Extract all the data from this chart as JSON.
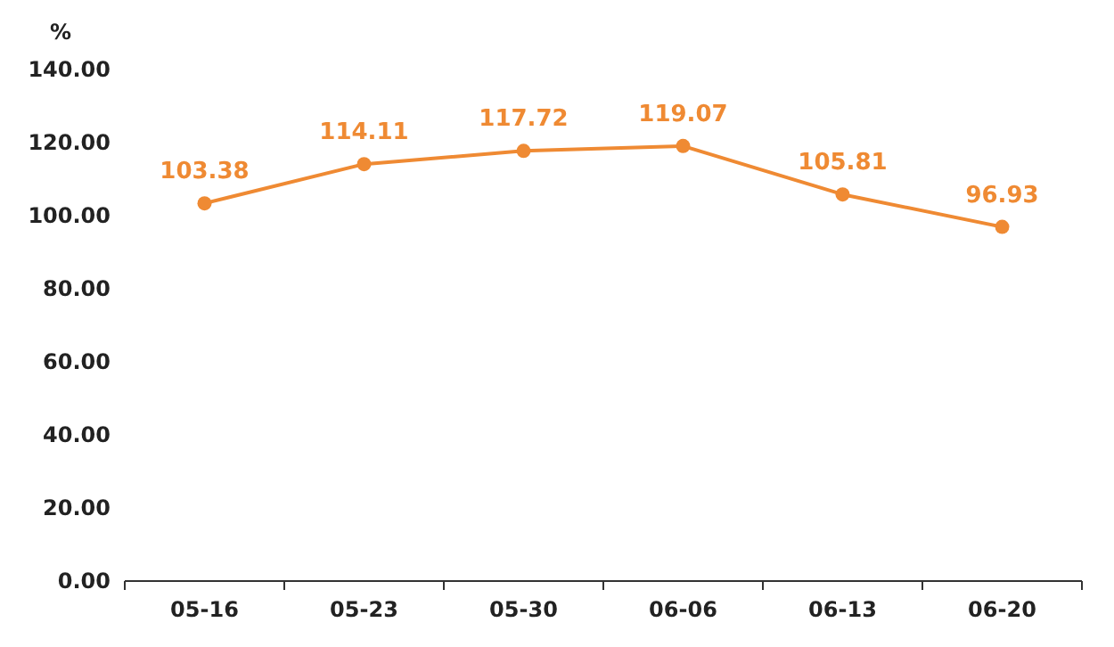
{
  "chart_data": {
    "type": "line",
    "ylabel": "%",
    "categories": [
      "05-16",
      "05-23",
      "05-30",
      "06-06",
      "06-13",
      "06-20"
    ],
    "series": [
      {
        "color": "#ef8a33",
        "values": [
          103.38,
          114.11,
          117.72,
          119.07,
          105.81,
          96.93
        ]
      }
    ],
    "ylim": [
      0,
      140
    ],
    "yticks": [
      {
        "value": 0,
        "label": "0.00"
      },
      {
        "value": 20,
        "label": "20.00"
      },
      {
        "value": 40,
        "label": "40.00"
      },
      {
        "value": 60,
        "label": "60.00"
      },
      {
        "value": 80,
        "label": "80.00"
      },
      {
        "value": 100,
        "label": "100.00"
      },
      {
        "value": 120,
        "label": "120.00"
      },
      {
        "value": 140,
        "label": "140.00"
      }
    ],
    "data_labels": true,
    "marker": "circle"
  }
}
